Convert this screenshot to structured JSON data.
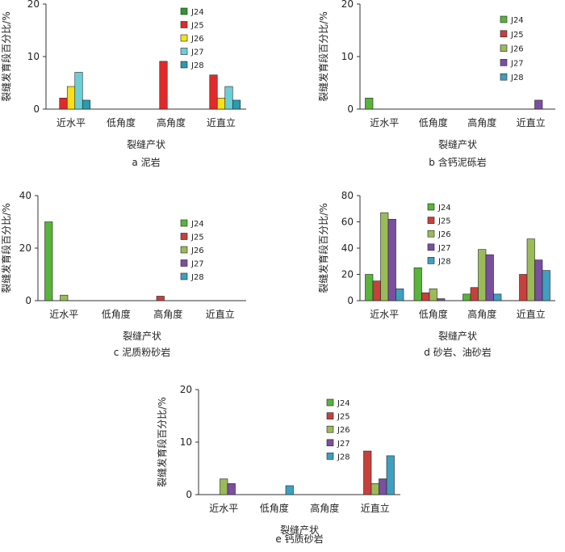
{
  "colors": {
    "set1": [
      "#2c9a2c",
      "#e02a2a",
      "#f4e21a",
      "#6ccfd8",
      "#2a9bb0"
    ],
    "set2": [
      "#58b43a",
      "#c8403c",
      "#9bbb59",
      "#7a4fa0",
      "#3f9fbe"
    ]
  },
  "chart_data": [
    {
      "id": "a",
      "type": "bar",
      "caption": "a  泥岩",
      "xlabel": "裂缝产状",
      "ylabel": "裂缝发育段百分比/%",
      "ylim": [
        0,
        20
      ],
      "yticks": [
        0,
        10,
        20
      ],
      "categories": [
        "近水平",
        "低角度",
        "高角度",
        "近直立"
      ],
      "legend_position": "top-right",
      "palette": "set1",
      "series": [
        {
          "name": "J24",
          "values": [
            0,
            0,
            0,
            0
          ]
        },
        {
          "name": "J25",
          "values": [
            2.1,
            0,
            9.1,
            6.5
          ]
        },
        {
          "name": "J26",
          "values": [
            4.3,
            0,
            0,
            2.1
          ]
        },
        {
          "name": "J27",
          "values": [
            7.0,
            0,
            0,
            4.3
          ]
        },
        {
          "name": "J28",
          "values": [
            1.7,
            0,
            0,
            1.7
          ]
        }
      ]
    },
    {
      "id": "b",
      "type": "bar",
      "caption": "b  含钙泥砾岩",
      "xlabel": "裂缝产状",
      "ylabel": "裂缝发育段百分比/%",
      "ylim": [
        0,
        20
      ],
      "yticks": [
        0,
        10,
        20
      ],
      "categories": [
        "近水平",
        "低角度",
        "高角度",
        "近直立"
      ],
      "legend_position": "top-right",
      "palette": "set2",
      "series": [
        {
          "name": "J24",
          "values": [
            2.1,
            0,
            0,
            0
          ]
        },
        {
          "name": "J25",
          "values": [
            0,
            0,
            0,
            0
          ]
        },
        {
          "name": "J26",
          "values": [
            0,
            0,
            0,
            0
          ]
        },
        {
          "name": "J27",
          "values": [
            0,
            0,
            0,
            1.7
          ]
        },
        {
          "name": "J28",
          "values": [
            0,
            0,
            0,
            0
          ]
        }
      ]
    },
    {
      "id": "c",
      "type": "bar",
      "caption": "c  泥质粉砂岩",
      "xlabel": "裂缝产状",
      "ylabel": "裂缝发育段百分比/%",
      "ylim": [
        0,
        40
      ],
      "yticks": [
        0,
        20,
        40
      ],
      "categories": [
        "近水平",
        "低角度",
        "高角度",
        "近直立"
      ],
      "legend_position": "top-right",
      "palette": "set2",
      "series": [
        {
          "name": "J24",
          "values": [
            30,
            0,
            0,
            0
          ]
        },
        {
          "name": "J25",
          "values": [
            0,
            0,
            1.7,
            0
          ]
        },
        {
          "name": "J26",
          "values": [
            2.1,
            0,
            0,
            0
          ]
        },
        {
          "name": "J27",
          "values": [
            0,
            0,
            0,
            0
          ]
        },
        {
          "name": "J28",
          "values": [
            0,
            0,
            0,
            0
          ]
        }
      ]
    },
    {
      "id": "d",
      "type": "bar",
      "caption": "d  砂岩、油砂岩",
      "xlabel": "裂缝产状",
      "ylabel": "裂缝发育段百分比/%",
      "ylim": [
        0,
        80
      ],
      "yticks": [
        0,
        20,
        40,
        60,
        80
      ],
      "categories": [
        "近水平",
        "低角度",
        "高角度",
        "近直立"
      ],
      "legend_position": "top-left",
      "palette": "set2",
      "series": [
        {
          "name": "J24",
          "values": [
            20,
            25,
            5,
            0
          ]
        },
        {
          "name": "J25",
          "values": [
            15,
            6,
            10,
            20
          ]
        },
        {
          "name": "J26",
          "values": [
            67,
            9,
            39,
            47
          ]
        },
        {
          "name": "J27",
          "values": [
            62,
            1.5,
            35,
            31
          ]
        },
        {
          "name": "J28",
          "values": [
            9,
            0,
            5,
            23
          ]
        }
      ]
    },
    {
      "id": "e",
      "type": "bar",
      "caption": "e  钙质砂岩",
      "xlabel": "裂缝产状",
      "ylabel": "裂缝发育段百分比/%",
      "ylim": [
        0,
        20
      ],
      "yticks": [
        0,
        10,
        20
      ],
      "categories": [
        "近水平",
        "低角度",
        "高角度",
        "近直立"
      ],
      "legend_position": "top-left",
      "palette": "set2",
      "series": [
        {
          "name": "J24",
          "values": [
            0,
            0,
            0,
            0
          ]
        },
        {
          "name": "J25",
          "values": [
            0,
            0,
            0,
            8.3
          ]
        },
        {
          "name": "J26",
          "values": [
            3.0,
            0,
            0,
            2.1
          ]
        },
        {
          "name": "J27",
          "values": [
            2.1,
            0,
            0,
            3.0
          ]
        },
        {
          "name": "J28",
          "values": [
            0,
            1.7,
            0,
            7.4
          ]
        }
      ]
    }
  ]
}
